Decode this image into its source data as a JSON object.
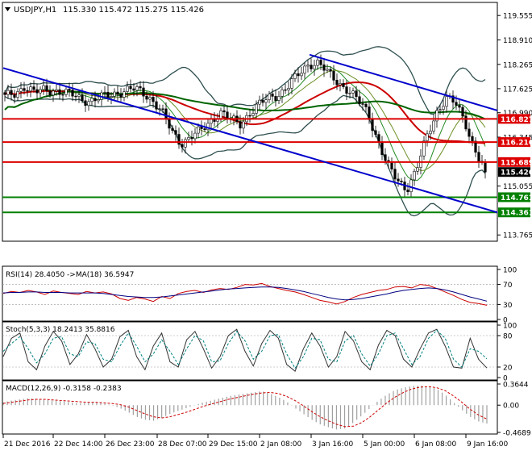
{
  "header": {
    "symbol": "USDJPY,H1",
    "ohlc": "115.330 115.472 115.275 115.426"
  },
  "price_axis": {
    "ticks": [
      "119.555",
      "118.910",
      "118.265",
      "117.625",
      "116.990",
      "116.345",
      "115.055",
      "113.765"
    ],
    "tick_values": [
      119.555,
      118.91,
      118.265,
      117.625,
      116.99,
      116.345,
      115.055,
      113.765
    ],
    "current_price_label": "115.426",
    "level_labels": [
      "116.827",
      "116.216",
      "115.689",
      "114.761",
      "114.361"
    ]
  },
  "time_axis": {
    "labels": [
      "21 Dec 2016",
      "22 Dec 14:00",
      "26 Dec 23:00",
      "28 Dec 07:00",
      "29 Dec 15:00",
      "2 Jan 08:00",
      "3 Jan 16:00",
      "5 Jan 00:00",
      "6 Jan 08:00",
      "9 Jan 16:00"
    ]
  },
  "rsi_panel": {
    "label": "RSI(14) 28.4050 ->MA(18) 36.5947",
    "ticks": [
      "100",
      "70",
      "30",
      "0"
    ]
  },
  "stoch_panel": {
    "label": "Stoch(5,3,3) 18.2413 35.8816",
    "ticks": [
      "100",
      "80",
      "20",
      "0"
    ]
  },
  "macd_panel": {
    "label": "MACD(12,26,9) -0.3158 -0.2383",
    "ticks": [
      "0.3644",
      "0.00",
      "-0.4689"
    ]
  },
  "colors": {
    "candle": "#000000",
    "bollinger": "#2f4f4f",
    "ma_fast": "#228b22",
    "ma_mid": "#cc0000",
    "ma_slow": "#006400",
    "resistance": "#dd0000",
    "support": "#008000",
    "trendline": "#0000cc",
    "price_label_bg": "#000000",
    "oscillator_main": "#cc0000",
    "oscillator_signal": "#000080",
    "stoch_signal": "#008080"
  },
  "chart_data": [
    {
      "type": "candlestick",
      "title": "USDJPY,H1",
      "ylim": [
        113.6,
        119.9
      ],
      "horizontal_levels": [
        {
          "value": 116.827,
          "color": "red"
        },
        {
          "value": 116.216,
          "color": "red"
        },
        {
          "value": 115.689,
          "color": "red"
        },
        {
          "value": 114.761,
          "color": "green"
        },
        {
          "value": 114.361,
          "color": "green"
        }
      ],
      "trendlines": [
        {
          "from": [
            0,
            118.17
          ],
          "to": [
            1,
            114.36
          ]
        },
        {
          "from": [
            0.62,
            118.52
          ],
          "to": [
            1,
            117.05
          ]
        }
      ],
      "close_path": [
        117.4,
        117.5,
        117.7,
        117.5,
        117.6,
        117.6,
        117.5,
        117.45,
        117.35,
        117.3,
        117.4,
        117.5,
        117.55,
        117.6,
        117.55,
        117.35,
        117.0,
        116.5,
        116.2,
        116.35,
        116.5,
        116.8,
        117.0,
        116.8,
        116.7,
        117.0,
        117.2,
        117.4,
        117.5,
        117.7,
        118.0,
        118.3,
        118.3,
        118.0,
        117.8,
        117.6,
        117.3,
        117.0,
        116.3,
        115.6,
        115.2,
        115.0,
        115.5,
        116.3,
        117.0,
        117.4,
        117.2,
        116.7,
        116.0,
        115.426
      ],
      "x_range": [
        "21 Dec 2016",
        "9 Jan 16:00"
      ]
    },
    {
      "type": "line",
      "title": "RSI(14) 28.4050 ->MA(18) 36.5947",
      "ylim": [
        0,
        100
      ],
      "series": [
        {
          "values": [
            52,
            56,
            54,
            58,
            55,
            50,
            57,
            54,
            52,
            50,
            56,
            53,
            55,
            51,
            42,
            38,
            44,
            41,
            36,
            46,
            42,
            52,
            56,
            58,
            54,
            59,
            62,
            60,
            64,
            70,
            69,
            72,
            66,
            62,
            58,
            55,
            50,
            44,
            38,
            35,
            31,
            36,
            44,
            50,
            54,
            58,
            60,
            65,
            66,
            63,
            70,
            68,
            62,
            55,
            48,
            40,
            34,
            32,
            28.4
          ]
        },
        {
          "values": [
            53,
            54,
            54,
            55,
            55,
            54,
            54,
            54,
            53,
            53,
            53,
            53,
            52,
            50,
            48,
            46,
            45,
            44,
            44,
            45,
            47,
            49,
            51,
            53,
            55,
            57,
            59,
            61,
            62,
            63,
            64,
            65,
            65,
            64,
            62,
            59,
            56,
            52,
            48,
            44,
            41,
            39,
            40,
            42,
            45,
            48,
            51,
            55,
            58,
            60,
            62,
            63,
            62,
            59,
            55,
            50,
            45,
            41,
            36.6
          ]
        }
      ]
    },
    {
      "type": "line",
      "title": "Stoch(5,3,3) 18.2413 35.8816",
      "ylim": [
        0,
        100
      ],
      "series": [
        {
          "values": [
            40,
            75,
            85,
            30,
            15,
            60,
            88,
            70,
            25,
            45,
            82,
            55,
            20,
            35,
            78,
            90,
            40,
            15,
            60,
            85,
            30,
            20,
            72,
            88,
            55,
            18,
            40,
            80,
            92,
            50,
            22,
            65,
            90,
            75,
            25,
            12,
            55,
            85,
            60,
            20,
            40,
            88,
            70,
            30,
            15,
            62,
            90,
            80,
            35,
            20,
            55,
            85,
            92,
            60,
            20,
            18,
            75,
            35,
            18.2
          ]
        },
        {
          "values": [
            50,
            65,
            78,
            55,
            28,
            45,
            75,
            78,
            45,
            40,
            68,
            65,
            35,
            30,
            60,
            85,
            60,
            30,
            45,
            72,
            50,
            25,
            55,
            80,
            70,
            30,
            32,
            65,
            88,
            70,
            35,
            50,
            80,
            82,
            45,
            18,
            40,
            75,
            72,
            35,
            30,
            70,
            80,
            45,
            22,
            45,
            80,
            85,
            55,
            25,
            40,
            75,
            90,
            75,
            35,
            20,
            55,
            50,
            35.9
          ]
        }
      ]
    },
    {
      "type": "bar",
      "title": "MACD(12,26,9) -0.3158 -0.2383",
      "ylim": [
        -0.4689,
        0.3644
      ],
      "series": [
        {
          "name": "histogram",
          "values": [
            0.05,
            0.08,
            0.1,
            0.12,
            0.11,
            0.09,
            0.08,
            0.07,
            0.05,
            0.03,
            0.04,
            0.05,
            0.03,
            0.0,
            -0.05,
            -0.12,
            -0.2,
            -0.25,
            -0.27,
            -0.22,
            -0.15,
            -0.1,
            -0.05,
            0.0,
            0.05,
            0.08,
            0.12,
            0.15,
            0.18,
            0.2,
            0.22,
            0.24,
            0.2,
            0.14,
            0.06,
            -0.05,
            -0.15,
            -0.25,
            -0.33,
            -0.38,
            -0.42,
            -0.4,
            -0.3,
            -0.18,
            -0.05,
            0.08,
            0.18,
            0.26,
            0.3,
            0.33,
            0.34,
            0.32,
            0.28,
            0.18,
            0.05,
            -0.08,
            -0.2,
            -0.28,
            -0.3158
          ]
        },
        {
          "name": "signal",
          "values": [
            0.03,
            0.05,
            0.07,
            0.09,
            0.1,
            0.1,
            0.09,
            0.08,
            0.07,
            0.06,
            0.05,
            0.05,
            0.04,
            0.03,
            0.01,
            -0.03,
            -0.09,
            -0.15,
            -0.2,
            -0.22,
            -0.2,
            -0.16,
            -0.12,
            -0.07,
            -0.02,
            0.02,
            0.06,
            0.1,
            0.13,
            0.16,
            0.19,
            0.21,
            0.22,
            0.2,
            0.15,
            0.08,
            -0.01,
            -0.11,
            -0.2,
            -0.27,
            -0.33,
            -0.37,
            -0.36,
            -0.3,
            -0.2,
            -0.08,
            0.04,
            0.14,
            0.22,
            0.28,
            0.31,
            0.32,
            0.3,
            0.25,
            0.16,
            0.05,
            -0.07,
            -0.17,
            -0.2383
          ]
        }
      ]
    }
  ]
}
